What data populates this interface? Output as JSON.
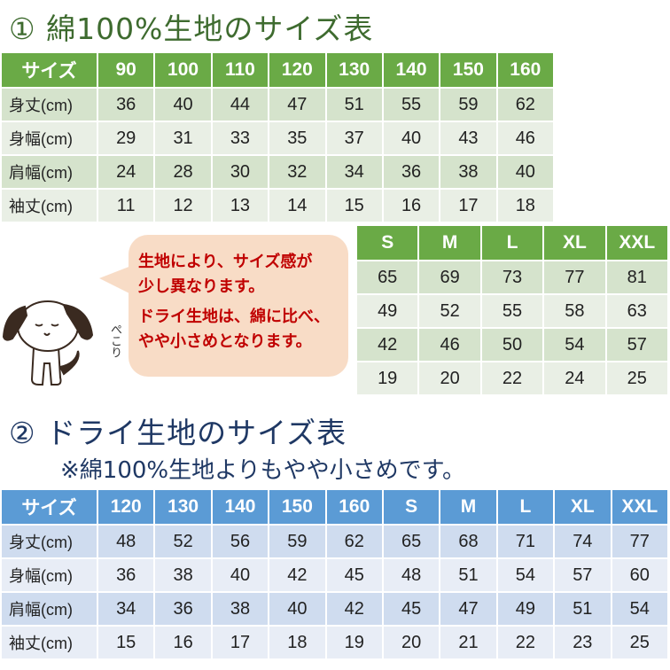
{
  "cotton": {
    "title": "① 綿100%生地のサイズ表",
    "header": [
      "サイズ",
      "90",
      "100",
      "110",
      "120",
      "130",
      "140",
      "150",
      "160"
    ],
    "rows": [
      [
        "身丈(cm)",
        "36",
        "40",
        "44",
        "47",
        "51",
        "55",
        "59",
        "62"
      ],
      [
        "身幅(cm)",
        "29",
        "31",
        "33",
        "35",
        "37",
        "40",
        "43",
        "46"
      ],
      [
        "肩幅(cm)",
        "24",
        "28",
        "30",
        "32",
        "34",
        "36",
        "38",
        "40"
      ],
      [
        "袖丈(cm)",
        "11",
        "12",
        "13",
        "14",
        "15",
        "16",
        "17",
        "18"
      ]
    ],
    "adult_header": [
      "S",
      "M",
      "L",
      "XL",
      "XXL"
    ],
    "adult_rows": [
      [
        "65",
        "69",
        "73",
        "77",
        "81"
      ],
      [
        "49",
        "52",
        "55",
        "58",
        "63"
      ],
      [
        "42",
        "46",
        "50",
        "54",
        "57"
      ],
      [
        "19",
        "20",
        "22",
        "24",
        "25"
      ]
    ]
  },
  "bubble": {
    "line1": "生地により、サイズ感が",
    "line2": "少し異なります。",
    "line3": "ドライ生地は、綿に比べ、",
    "line4": "やや小さめとなります。",
    "sound": "ぺこり"
  },
  "dry": {
    "title": "② ドライ生地のサイズ表",
    "subtitle": "※綿100%生地よりもやや小さめです。",
    "header": [
      "サイズ",
      "120",
      "130",
      "140",
      "150",
      "160",
      "S",
      "M",
      "L",
      "XL",
      "XXL"
    ],
    "rows": [
      [
        "身丈(cm)",
        "48",
        "52",
        "56",
        "59",
        "62",
        "65",
        "68",
        "71",
        "74",
        "77"
      ],
      [
        "身幅(cm)",
        "36",
        "38",
        "40",
        "42",
        "45",
        "48",
        "51",
        "54",
        "57",
        "60"
      ],
      [
        "肩幅(cm)",
        "34",
        "36",
        "38",
        "40",
        "42",
        "45",
        "47",
        "49",
        "51",
        "54"
      ],
      [
        "袖丈(cm)",
        "15",
        "16",
        "17",
        "18",
        "19",
        "20",
        "21",
        "22",
        "23",
        "25"
      ]
    ]
  },
  "colors": {
    "green_header": "#6aaa46",
    "blue_header": "#5b9bd5",
    "bubble_text": "#c00000",
    "bubble_bg": "#f8dcc6"
  },
  "icons": {
    "character": "dog-bowing"
  }
}
